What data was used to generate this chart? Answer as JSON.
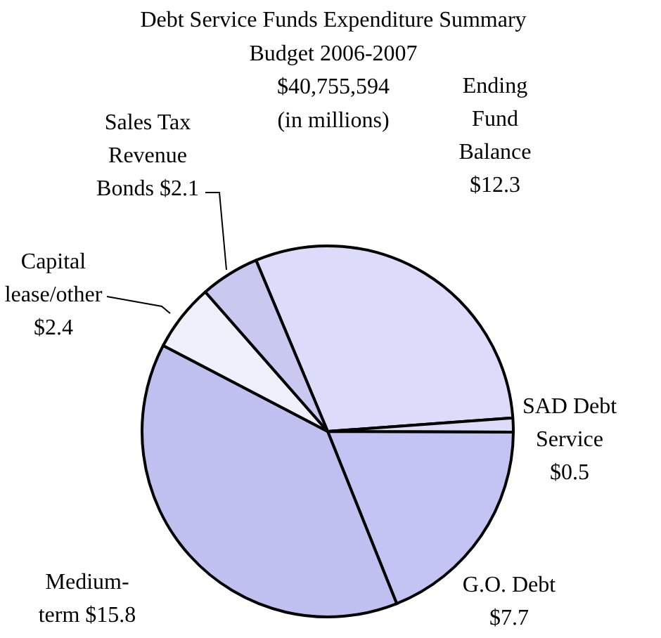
{
  "chart_data": {
    "type": "pie",
    "title": "Debt Service Funds Expenditure Summary Budget 2006-2007",
    "subtitle": "$40,755,594 (in millions)",
    "categories": [
      "Ending Fund Balance",
      "SAD Debt Service",
      "G.O. Debt",
      "Medium-term",
      "Capital lease/other",
      "Sales Tax Revenue Bonds"
    ],
    "values": [
      12.3,
      0.5,
      7.7,
      15.8,
      2.4,
      2.1
    ],
    "value_labels": [
      "$12.3",
      "$0.5",
      "$7.7",
      "$15.8",
      "$2.4",
      "$2.1"
    ],
    "colors": [
      "#dcdcfa",
      "#dcdcf8",
      "#c4c4f4",
      "#c0c0f0",
      "#f0f0fc",
      "#c8c8f0"
    ],
    "legend": false
  }
}
